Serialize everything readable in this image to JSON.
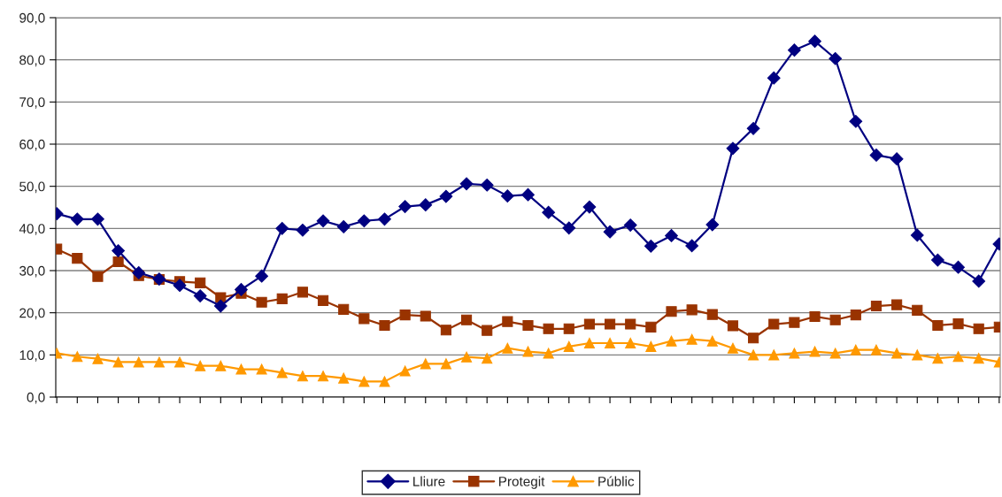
{
  "chart_data": {
    "type": "line",
    "categories": [
      null,
      null,
      null,
      null,
      null,
      null,
      null,
      null,
      null,
      null,
      null,
      null,
      null,
      null,
      null,
      null,
      null,
      null,
      null,
      null,
      null,
      null,
      null,
      null,
      null,
      null,
      null,
      null,
      null,
      null,
      null,
      null,
      null,
      null,
      null,
      null,
      null,
      null,
      null,
      null,
      null,
      null,
      null,
      null,
      null,
      null,
      null
    ],
    "series": [
      {
        "name": "Lliure",
        "color": "#000080",
        "marker": "diamond",
        "values": [
          43.5,
          42.2,
          42.2,
          34.7,
          29.5,
          28.0,
          26.5,
          24.0,
          21.6,
          25.5,
          28.7,
          40.0,
          39.6,
          41.8,
          40.4,
          41.8,
          42.2,
          45.2,
          45.6,
          47.6,
          50.6,
          50.3,
          47.7,
          48.0,
          43.8,
          40.1,
          45.1,
          39.2,
          40.8,
          35.8,
          38.3,
          35.9,
          40.9,
          59.0,
          63.7,
          75.7,
          82.3,
          84.4,
          80.3,
          65.4,
          57.4,
          56.5,
          38.4,
          32.5,
          30.8,
          27.5,
          36.3
        ]
      },
      {
        "name": "Protegit",
        "color": "#993300",
        "marker": "square",
        "values": [
          35.1,
          32.9,
          28.6,
          32.1,
          28.8,
          27.9,
          27.4,
          27.1,
          23.6,
          24.6,
          22.5,
          23.3,
          24.9,
          22.9,
          20.8,
          18.6,
          17.0,
          19.5,
          19.2,
          15.9,
          18.3,
          15.8,
          17.9,
          17.0,
          16.2,
          16.2,
          17.3,
          17.3,
          17.3,
          16.6,
          20.3,
          20.7,
          19.6,
          16.9,
          14.0,
          17.3,
          17.7,
          19.1,
          18.3,
          19.5,
          21.6,
          21.9,
          20.6,
          17.0,
          17.4,
          16.2,
          16.6
        ]
      },
      {
        "name": "Públic",
        "color": "#ff9900",
        "marker": "triangle",
        "values": [
          10.4,
          9.6,
          9.1,
          8.3,
          8.3,
          8.3,
          8.3,
          7.4,
          7.4,
          6.6,
          6.6,
          5.8,
          5.0,
          5.0,
          4.5,
          3.7,
          3.7,
          6.2,
          7.9,
          7.9,
          9.5,
          9.2,
          11.6,
          10.8,
          10.4,
          12.0,
          12.8,
          12.8,
          12.8,
          12.0,
          13.3,
          13.7,
          13.3,
          11.6,
          10.0,
          10.0,
          10.4,
          10.8,
          10.4,
          11.2,
          11.2,
          10.4,
          10.0,
          9.2,
          9.6,
          9.2,
          8.3
        ]
      }
    ],
    "ylim": [
      0,
      90
    ],
    "yticks": [
      {
        "value": 0,
        "label": "0,0"
      },
      {
        "value": 10,
        "label": "10,0"
      },
      {
        "value": 20,
        "label": "20,0"
      },
      {
        "value": 30,
        "label": "30,0"
      },
      {
        "value": 40,
        "label": "40,0"
      },
      {
        "value": 50,
        "label": "50,0"
      },
      {
        "value": 60,
        "label": "60,0"
      },
      {
        "value": 70,
        "label": "70,0"
      },
      {
        "value": 80,
        "label": "80,0"
      },
      {
        "value": 90,
        "label": "90,0"
      }
    ],
    "grid": "y",
    "legend": "bottom",
    "line_style": "solid"
  }
}
